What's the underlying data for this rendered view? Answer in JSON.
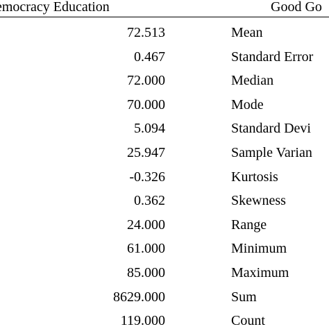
{
  "header": {
    "left_title": "emocracy Education",
    "right_title": "Good Go"
  },
  "rows": [
    {
      "value": "72.513",
      "label": "Mean"
    },
    {
      "value": "0.467",
      "label": "Standard Error"
    },
    {
      "value": "72.000",
      "label": "Median"
    },
    {
      "value": "70.000",
      "label": "Mode"
    },
    {
      "value": "5.094",
      "label": "Standard Devi"
    },
    {
      "value": "25.947",
      "label": "Sample Varian"
    },
    {
      "value": "-0.326",
      "label": "Kurtosis"
    },
    {
      "value": "0.362",
      "label": "Skewness"
    },
    {
      "value": "24.000",
      "label": "Range"
    },
    {
      "value": "61.000",
      "label": "Minimum"
    },
    {
      "value": "85.000",
      "label": "Maximum"
    },
    {
      "value": "8629.000",
      "label": "Sum"
    },
    {
      "value": "119.000",
      "label": "Count"
    }
  ]
}
